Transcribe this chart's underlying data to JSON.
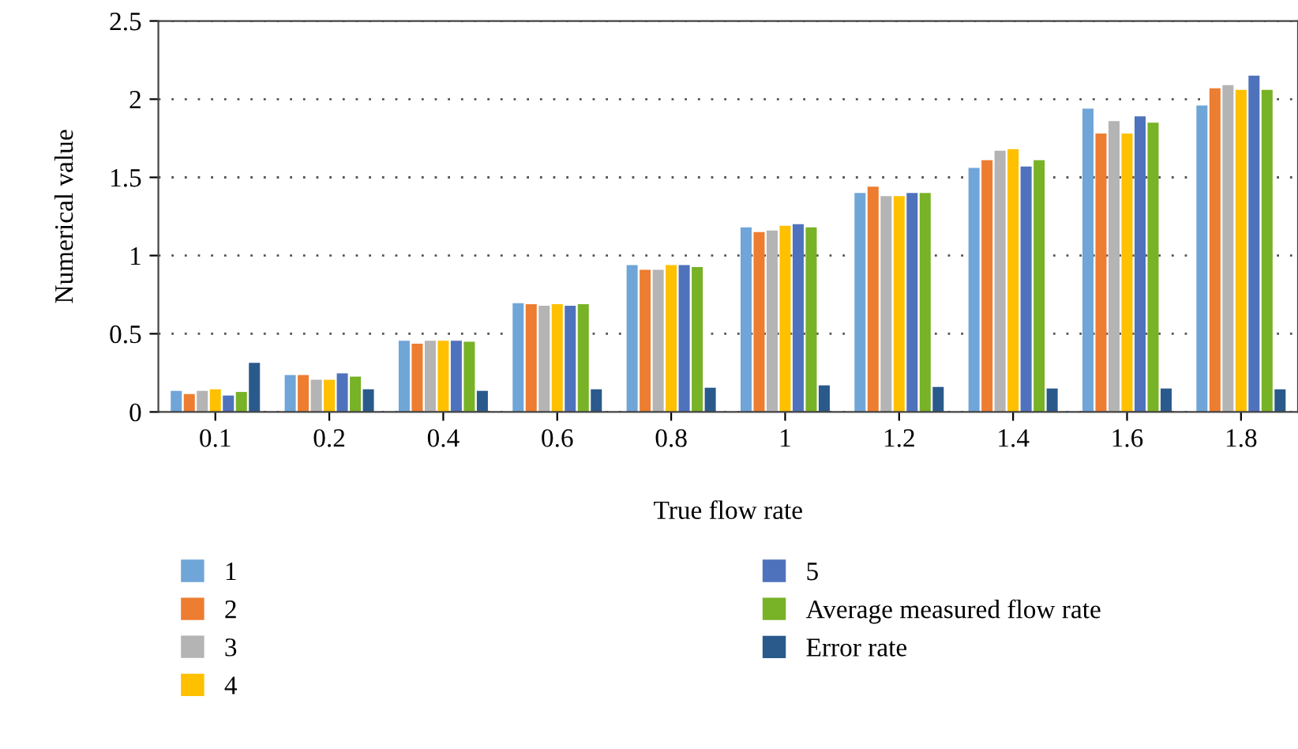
{
  "chart_data": {
    "type": "bar",
    "xlabel": "True flow rate",
    "ylabel": "Numerical value",
    "categories": [
      "0.1",
      "0.2",
      "0.4",
      "0.6",
      "0.8",
      "1",
      "1.2",
      "1.4",
      "1.6",
      "1.8"
    ],
    "series": [
      {
        "name": "1",
        "color": "#70a5d8",
        "values": [
          0.135,
          0.236,
          0.456,
          0.696,
          0.939,
          1.18,
          1.4,
          1.56,
          1.94,
          1.96
        ]
      },
      {
        "name": "2",
        "color": "#ed7d31",
        "values": [
          0.115,
          0.236,
          0.436,
          0.689,
          0.909,
          1.15,
          1.44,
          1.61,
          1.78,
          2.07
        ]
      },
      {
        "name": "3",
        "color": "#b4b4b4",
        "values": [
          0.135,
          0.206,
          0.456,
          0.679,
          0.909,
          1.16,
          1.38,
          1.67,
          1.86,
          2.09
        ]
      },
      {
        "name": "4",
        "color": "#ffc000",
        "values": [
          0.145,
          0.206,
          0.456,
          0.689,
          0.939,
          1.19,
          1.38,
          1.68,
          1.78,
          2.06
        ]
      },
      {
        "name": "5",
        "color": "#4f72bd",
        "values": [
          0.105,
          0.247,
          0.456,
          0.679,
          0.939,
          1.2,
          1.4,
          1.57,
          1.89,
          2.15
        ]
      },
      {
        "name": "Average measured flow rate",
        "color": "#78b226",
        "values": [
          0.128,
          0.226,
          0.449,
          0.689,
          0.926,
          1.18,
          1.4,
          1.61,
          1.85,
          2.06
        ]
      },
      {
        "name": "Error rate",
        "color": "#2a5a8c",
        "values": [
          0.314,
          0.145,
          0.135,
          0.145,
          0.155,
          0.17,
          0.16,
          0.15,
          0.15,
          0.145
        ]
      }
    ],
    "ylim": [
      0,
      2.5
    ],
    "yticks": [
      0,
      0.5,
      1,
      1.5,
      2,
      2.5
    ],
    "grid": "y",
    "legend": "bottom"
  }
}
